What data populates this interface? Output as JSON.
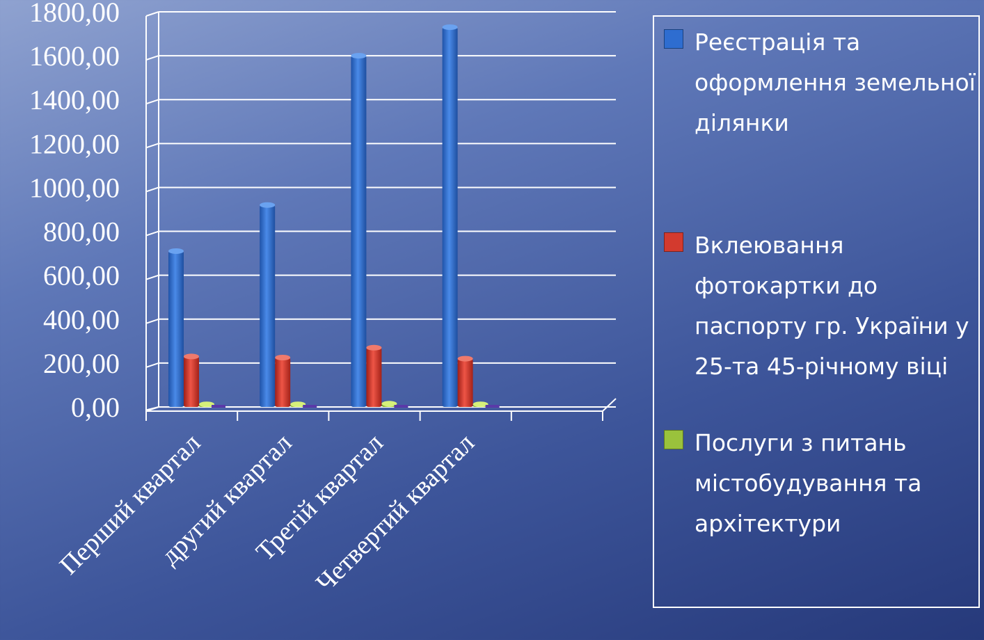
{
  "chart_data": {
    "type": "bar",
    "categories": [
      "Перший квартал",
      "другий квартал",
      "Третій квартал",
      "Четвертий квартал"
    ],
    "series": [
      {
        "name": "Реєстрація та оформлення земельної ділянки",
        "values": [
          710,
          920,
          1600,
          1730
        ],
        "color": "#2e6dd0"
      },
      {
        "name": "Вклеювання фотокартки до паспорту гр. України у 25-та 45-річному віці",
        "values": [
          230,
          225,
          270,
          220
        ],
        "color": "#d33a2e"
      },
      {
        "name": "Послуги з питань містобудування та архітектури",
        "values": [
          12,
          12,
          15,
          12
        ],
        "color": "#9ac23c"
      }
    ],
    "y_ticks": [
      "0,00",
      "200,00",
      "400,00",
      "600,00",
      "800,00",
      "1000,00",
      "1200,00",
      "1400,00",
      "1600,00",
      "1800,00"
    ],
    "ylim": [
      0,
      1800
    ],
    "grid": true,
    "legend_position": "right"
  }
}
